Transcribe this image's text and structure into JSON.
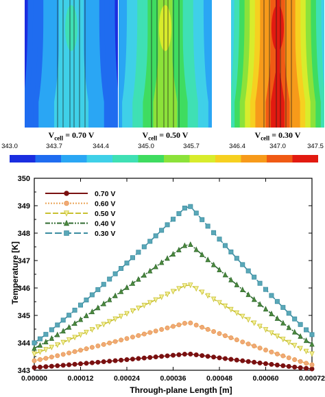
{
  "panels": [
    {
      "label_main": "V",
      "label_sub": "cell",
      "label_value": " = 0.70 V",
      "voltage": 0.7
    },
    {
      "label_main": "V",
      "label_sub": "cell",
      "label_value": " = 0.50 V",
      "voltage": 0.5
    },
    {
      "label_main": "V",
      "label_sub": "cell",
      "label_value": " = 0.30 V",
      "voltage": 0.3
    }
  ],
  "colorbar": {
    "ticks": [
      "343.0",
      "343.7",
      "344.4",
      "345.0",
      "345.7",
      "346.4",
      "347.0",
      "347.5"
    ],
    "colors": [
      "#1a2ee0",
      "#1f6cf0",
      "#2aa6f4",
      "#3fd0e8",
      "#3fe0b4",
      "#3fdc60",
      "#8ce23a",
      "#d8ec2c",
      "#f6d020",
      "#f79a1a",
      "#f05a14",
      "#e21a10"
    ]
  },
  "chart_data": {
    "type": "line",
    "xlabel": "Through-plane Length [m]",
    "ylabel": "Temperature [K]",
    "xlim": [
      0,
      0.00072
    ],
    "ylim": [
      343,
      350
    ],
    "xticks": [
      "0.00000",
      "0.00012",
      "0.00024",
      "0.00036",
      "0.00048",
      "0.00060",
      "0.00072"
    ],
    "yticks": [
      "343",
      "344",
      "345",
      "346",
      "347",
      "348",
      "349",
      "350"
    ],
    "legend_position": "top-left",
    "x_peak": 0.0004,
    "series": [
      {
        "name": "0.70 V",
        "start": 343.1,
        "peak": 343.6,
        "end": 343.05,
        "color": "#7a1010",
        "fill": "#7a1010",
        "marker": "circle",
        "dash": ""
      },
      {
        "name": "0.60 V",
        "start": 343.35,
        "peak": 344.75,
        "end": 343.2,
        "color": "#e8a050",
        "fill": "#f0a878",
        "marker": "circle",
        "dash": "2,2"
      },
      {
        "name": "0.50 V",
        "start": 343.6,
        "peak": 346.15,
        "end": 343.6,
        "color": "#c8c030",
        "fill": "#f4f09a",
        "marker": "triangle-down",
        "dash": "8,3"
      },
      {
        "name": "0.40 V",
        "start": 343.8,
        "peak": 347.65,
        "end": 343.95,
        "color": "#2e6a2e",
        "fill": "#4e8a3e",
        "marker": "triangle-up",
        "dash": "7,2,2,2,2,2"
      },
      {
        "name": "0.30 V",
        "start": 344.0,
        "peak": 349.05,
        "end": 344.3,
        "color": "#3a8ca0",
        "fill": "#5aa8b8",
        "marker": "square",
        "dash": "10,4"
      }
    ]
  }
}
